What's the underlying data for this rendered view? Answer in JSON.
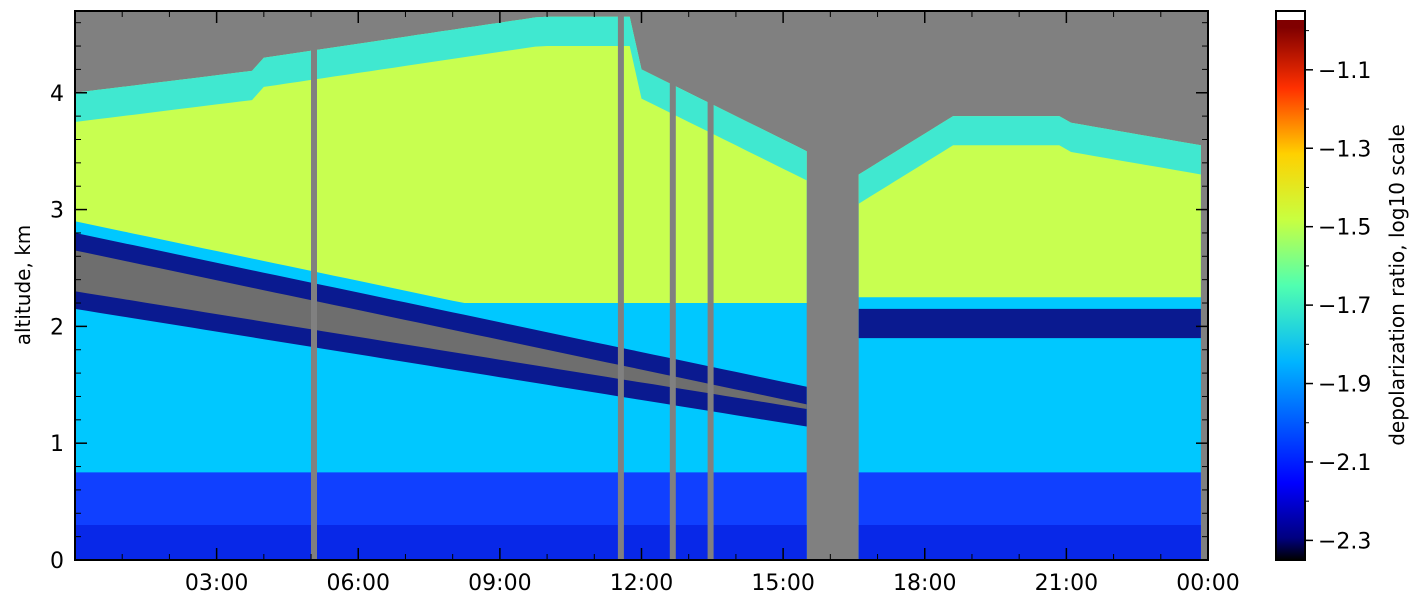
{
  "chart_data": {
    "type": "heatmap",
    "title": "",
    "xlabel": "",
    "ylabel": "altitude, km",
    "x_tick_labels": [
      "03:00",
      "06:00",
      "09:00",
      "12:00",
      "15:00",
      "18:00",
      "21:00",
      "00:00"
    ],
    "x_tick_hours": [
      3,
      6,
      9,
      12,
      15,
      18,
      21,
      24
    ],
    "xlim_hours": [
      0,
      24
    ],
    "y_ticks": [
      0,
      1,
      2,
      3,
      4
    ],
    "ylim": [
      0,
      4.7
    ],
    "colorbar": {
      "label": "depolarization ratio, log10 scale",
      "scale": "log10",
      "range": [
        -2.35,
        -0.95
      ],
      "ticks": [
        -1.1,
        -1.3,
        -1.5,
        -1.7,
        -1.9,
        -2.1,
        -2.3
      ],
      "tick_labels": [
        "−1.1",
        "−1.3",
        "−1.5",
        "−1.7",
        "−1.9",
        "−2.1",
        "−2.3"
      ],
      "colormap": "jet",
      "no_data_color": "#808080"
    },
    "layers_approx": [
      {
        "description": "surface layer",
        "altitude_km": [
          0,
          0.7
        ],
        "value": -2.15
      },
      {
        "description": "mid boundary layer",
        "altitude_km": [
          0.7,
          1.9
        ],
        "value": -1.9
      },
      {
        "description": "low-depolarization band",
        "altitude_km_start": [
          1.8,
          2.8
        ],
        "altitude_km_end": [
          1.1,
          1.7
        ],
        "value": -2.3
      },
      {
        "description": "elevated aerosol layer",
        "altitude_km": [
          2.8,
          4.3
        ],
        "value": -1.55
      }
    ],
    "no_data_gap_hours": [
      15.6,
      16.6
    ]
  }
}
